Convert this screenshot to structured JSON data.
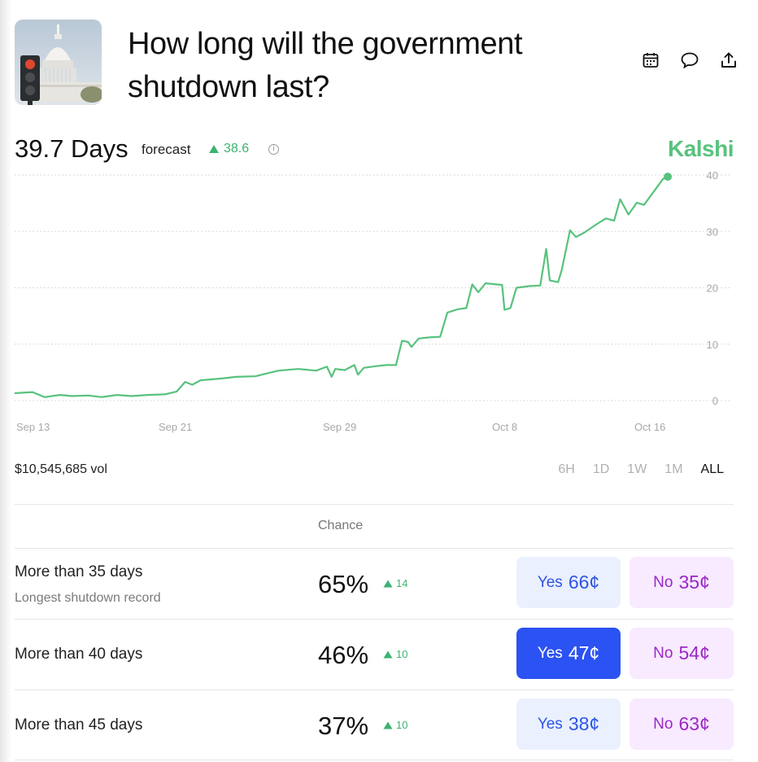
{
  "market": {
    "title": "How long will the government shutdown last?"
  },
  "header_icons": [
    "calendar-icon",
    "comment-icon",
    "share-icon"
  ],
  "forecast": {
    "value": "39.7 Days",
    "label": "forecast",
    "change": "38.6",
    "brand": "Kalshi"
  },
  "chart_data": {
    "type": "line",
    "x_tick_labels": [
      "Sep 13",
      "Sep 21",
      "Sep 29",
      "Oct 8",
      "Oct 16"
    ],
    "y_ticks": [
      0,
      10,
      20,
      30,
      40
    ],
    "ylim": [
      0,
      40
    ],
    "grid": true,
    "line_color": "#58c27d",
    "series": [
      {
        "points": [
          [
            0.0,
            1.3
          ],
          [
            1.5,
            1.5
          ],
          [
            2.5,
            0.6
          ],
          [
            3.8,
            1.0
          ],
          [
            4.8,
            0.8
          ],
          [
            6.2,
            0.9
          ],
          [
            7.3,
            0.6
          ],
          [
            8.6,
            1.0
          ],
          [
            9.8,
            0.8
          ],
          [
            11.2,
            1.0
          ],
          [
            12.6,
            1.1
          ],
          [
            13.6,
            1.6
          ],
          [
            14.3,
            3.3
          ],
          [
            14.9,
            2.8
          ],
          [
            15.6,
            3.6
          ],
          [
            17.3,
            3.9
          ],
          [
            18.6,
            4.2
          ],
          [
            20.2,
            4.3
          ],
          [
            22.1,
            5.3
          ],
          [
            23.8,
            5.6
          ],
          [
            25.3,
            5.3
          ],
          [
            26.2,
            6.0
          ],
          [
            26.6,
            4.2
          ],
          [
            26.9,
            5.6
          ],
          [
            27.7,
            5.4
          ],
          [
            28.5,
            6.3
          ],
          [
            28.8,
            4.6
          ],
          [
            29.3,
            5.8
          ],
          [
            30.3,
            6.1
          ],
          [
            31.2,
            6.3
          ],
          [
            32.0,
            6.3
          ],
          [
            32.5,
            10.6
          ],
          [
            33.0,
            10.4
          ],
          [
            33.3,
            9.5
          ],
          [
            33.9,
            11.0
          ],
          [
            34.8,
            11.2
          ],
          [
            35.7,
            11.3
          ],
          [
            36.3,
            15.6
          ],
          [
            37.2,
            16.2
          ],
          [
            37.9,
            16.4
          ],
          [
            38.4,
            20.6
          ],
          [
            38.9,
            19.2
          ],
          [
            39.5,
            20.8
          ],
          [
            40.9,
            20.5
          ],
          [
            41.1,
            16.1
          ],
          [
            41.6,
            16.4
          ],
          [
            42.1,
            20.0
          ],
          [
            43.2,
            20.3
          ],
          [
            44.1,
            20.4
          ],
          [
            44.6,
            26.9
          ],
          [
            44.9,
            21.3
          ],
          [
            45.6,
            21.0
          ],
          [
            45.9,
            23.1
          ],
          [
            46.6,
            30.2
          ],
          [
            47.1,
            29.0
          ],
          [
            47.8,
            29.8
          ],
          [
            48.7,
            31.1
          ],
          [
            49.6,
            32.3
          ],
          [
            50.3,
            31.9
          ],
          [
            50.8,
            35.7
          ],
          [
            51.5,
            33.0
          ],
          [
            52.2,
            35.1
          ],
          [
            52.8,
            34.7
          ],
          [
            53.6,
            37.0
          ],
          [
            54.4,
            39.3
          ],
          [
            54.8,
            39.7
          ]
        ]
      }
    ]
  },
  "volume": "$10,545,685 vol",
  "ranges": [
    "6H",
    "1D",
    "1W",
    "1M",
    "ALL"
  ],
  "selected_range": "ALL",
  "table": {
    "header_chance": "Chance",
    "rows": [
      {
        "name": "More than 35 days",
        "sub": "Longest shutdown record",
        "chance": "65%",
        "change": "14",
        "yes_label": "Yes",
        "yes_price": "66¢",
        "no_label": "No",
        "no_price": "35¢",
        "yes_active": false
      },
      {
        "name": "More than 40 days",
        "sub": "",
        "chance": "46%",
        "change": "10",
        "yes_label": "Yes",
        "yes_price": "47¢",
        "no_label": "No",
        "no_price": "54¢",
        "yes_active": true
      },
      {
        "name": "More than 45 days",
        "sub": "",
        "chance": "37%",
        "change": "10",
        "yes_label": "Yes",
        "yes_price": "38¢",
        "no_label": "No",
        "no_price": "63¢",
        "yes_active": false
      }
    ]
  }
}
